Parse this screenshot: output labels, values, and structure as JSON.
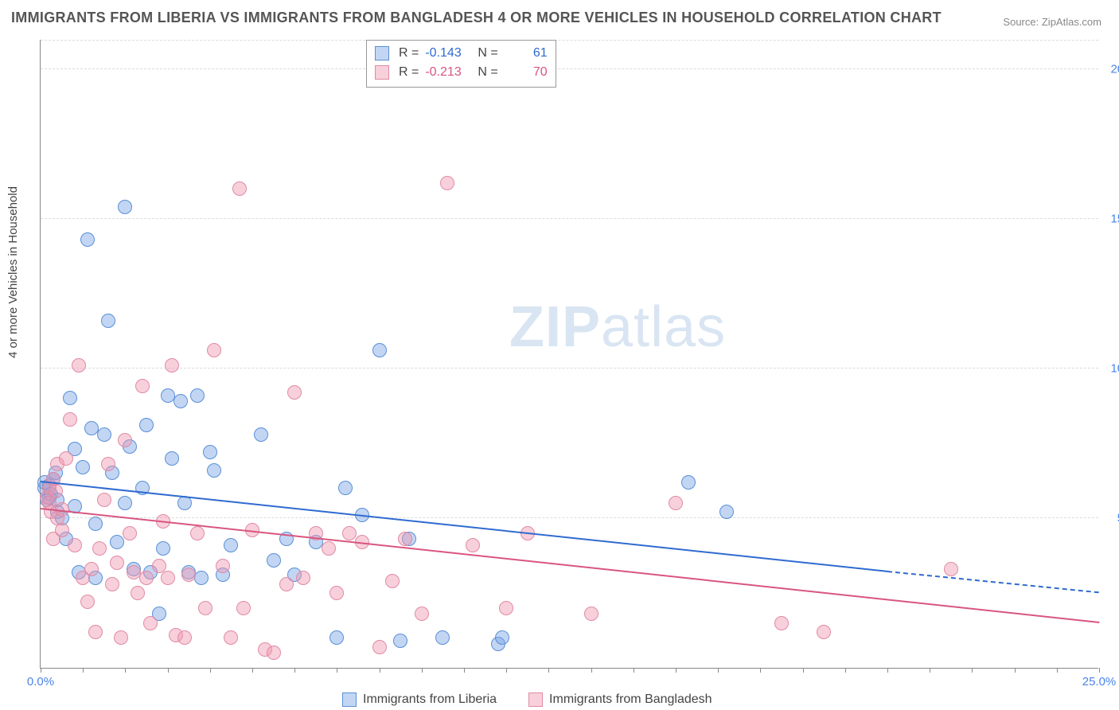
{
  "title": "IMMIGRANTS FROM LIBERIA VS IMMIGRANTS FROM BANGLADESH 4 OR MORE VEHICLES IN HOUSEHOLD CORRELATION CHART",
  "source_label": "Source:",
  "source_name": "ZipAtlas.com",
  "ylabel": "4 or more Vehicles in Household",
  "watermark_a": "ZIP",
  "watermark_b": "atlas",
  "chart": {
    "type": "scatter",
    "xlim": [
      0,
      25
    ],
    "ylim": [
      0,
      21
    ],
    "x_tick_major": [
      0,
      25
    ],
    "x_tick_minor_step": 1,
    "y_ticks": [
      5,
      10,
      15,
      20
    ],
    "y_tick_suffix": "%",
    "x_tick_suffix": "%",
    "background_color": "#ffffff",
    "grid_color": "#dcdcdc",
    "axis_color": "#888888",
    "tick_label_color": "#4a84e8",
    "marker_radius": 9,
    "marker_border_width": 1,
    "series": [
      {
        "id": "liberia",
        "label": "Immigrants from Liberia",
        "color_fill": "rgba(120,165,230,0.45)",
        "color_stroke": "#5a8fd6",
        "corr_R": "-0.143",
        "corr_N": "61",
        "trend": {
          "x0": 0,
          "y0": 6.2,
          "x1": 20,
          "y1": 3.2,
          "dash_x1": 25,
          "dash_y1": 2.5,
          "color": "#2f6bd0"
        },
        "points": [
          [
            0.1,
            6.0
          ],
          [
            0.1,
            6.2
          ],
          [
            0.15,
            5.6
          ],
          [
            0.2,
            5.7
          ],
          [
            0.2,
            6.1
          ],
          [
            0.25,
            5.8
          ],
          [
            0.3,
            6.3
          ],
          [
            0.35,
            6.5
          ],
          [
            0.4,
            5.2
          ],
          [
            0.4,
            5.6
          ],
          [
            0.5,
            5.0
          ],
          [
            0.6,
            4.3
          ],
          [
            0.7,
            9.0
          ],
          [
            0.8,
            7.3
          ],
          [
            0.8,
            5.4
          ],
          [
            0.9,
            3.2
          ],
          [
            1.0,
            6.7
          ],
          [
            1.1,
            14.3
          ],
          [
            1.2,
            8.0
          ],
          [
            1.3,
            4.8
          ],
          [
            1.3,
            3.0
          ],
          [
            1.5,
            7.8
          ],
          [
            1.6,
            11.6
          ],
          [
            1.7,
            6.5
          ],
          [
            1.8,
            4.2
          ],
          [
            2.0,
            15.4
          ],
          [
            2.1,
            7.4
          ],
          [
            2.2,
            3.3
          ],
          [
            2.4,
            6.0
          ],
          [
            2.5,
            8.1
          ],
          [
            2.6,
            3.2
          ],
          [
            2.8,
            1.8
          ],
          [
            2.9,
            4.0
          ],
          [
            3.0,
            9.1
          ],
          [
            3.1,
            7.0
          ],
          [
            3.3,
            8.9
          ],
          [
            3.5,
            3.2
          ],
          [
            3.7,
            9.1
          ],
          [
            3.8,
            3.0
          ],
          [
            4.0,
            7.2
          ],
          [
            4.1,
            6.6
          ],
          [
            4.3,
            3.1
          ],
          [
            4.5,
            4.1
          ],
          [
            5.2,
            7.8
          ],
          [
            5.5,
            3.6
          ],
          [
            5.8,
            4.3
          ],
          [
            6.0,
            3.1
          ],
          [
            6.5,
            4.2
          ],
          [
            7.0,
            1.0
          ],
          [
            7.2,
            6.0
          ],
          [
            7.6,
            5.1
          ],
          [
            8.0,
            10.6
          ],
          [
            8.5,
            0.9
          ],
          [
            8.7,
            4.3
          ],
          [
            9.5,
            1.0
          ],
          [
            10.8,
            0.8
          ],
          [
            10.9,
            1.0
          ],
          [
            15.3,
            6.2
          ],
          [
            16.2,
            5.2
          ],
          [
            2.0,
            5.5
          ],
          [
            3.4,
            5.5
          ]
        ]
      },
      {
        "id": "bangladesh",
        "label": "Immigrants from Bangladesh",
        "color_fill": "rgba(240,150,175,0.45)",
        "color_stroke": "#e08aa5",
        "corr_R": "-0.213",
        "corr_N": "70",
        "trend": {
          "x0": 0,
          "y0": 5.3,
          "x1": 25,
          "y1": 1.5,
          "color": "#d9557f"
        },
        "points": [
          [
            0.15,
            5.7
          ],
          [
            0.2,
            6.0
          ],
          [
            0.2,
            5.5
          ],
          [
            0.25,
            5.2
          ],
          [
            0.3,
            4.3
          ],
          [
            0.3,
            6.3
          ],
          [
            0.35,
            5.9
          ],
          [
            0.4,
            5.0
          ],
          [
            0.4,
            6.8
          ],
          [
            0.5,
            4.6
          ],
          [
            0.5,
            5.3
          ],
          [
            0.6,
            7.0
          ],
          [
            0.7,
            8.3
          ],
          [
            0.8,
            4.1
          ],
          [
            0.9,
            10.1
          ],
          [
            1.0,
            3.0
          ],
          [
            1.1,
            2.2
          ],
          [
            1.2,
            3.3
          ],
          [
            1.3,
            1.2
          ],
          [
            1.4,
            4.0
          ],
          [
            1.5,
            5.6
          ],
          [
            1.6,
            6.8
          ],
          [
            1.7,
            2.8
          ],
          [
            1.8,
            3.5
          ],
          [
            1.9,
            1.0
          ],
          [
            2.0,
            7.6
          ],
          [
            2.1,
            4.5
          ],
          [
            2.2,
            3.2
          ],
          [
            2.3,
            2.5
          ],
          [
            2.4,
            9.4
          ],
          [
            2.5,
            3.0
          ],
          [
            2.6,
            1.5
          ],
          [
            2.8,
            3.4
          ],
          [
            2.9,
            4.9
          ],
          [
            3.0,
            3.0
          ],
          [
            3.1,
            10.1
          ],
          [
            3.2,
            1.1
          ],
          [
            3.4,
            1.0
          ],
          [
            3.5,
            3.1
          ],
          [
            3.7,
            4.5
          ],
          [
            3.9,
            2.0
          ],
          [
            4.1,
            10.6
          ],
          [
            4.3,
            3.4
          ],
          [
            4.5,
            1.0
          ],
          [
            4.7,
            16.0
          ],
          [
            4.8,
            2.0
          ],
          [
            5.0,
            4.6
          ],
          [
            5.3,
            0.6
          ],
          [
            5.5,
            0.5
          ],
          [
            5.8,
            2.8
          ],
          [
            6.0,
            9.2
          ],
          [
            6.2,
            3.0
          ],
          [
            6.5,
            4.5
          ],
          [
            7.0,
            2.5
          ],
          [
            7.3,
            4.5
          ],
          [
            7.6,
            4.2
          ],
          [
            8.0,
            0.7
          ],
          [
            8.3,
            2.9
          ],
          [
            8.6,
            4.3
          ],
          [
            9.0,
            1.8
          ],
          [
            10.2,
            4.1
          ],
          [
            11.0,
            2.0
          ],
          [
            11.5,
            4.5
          ],
          [
            13.0,
            1.8
          ],
          [
            15.0,
            5.5
          ],
          [
            17.5,
            1.5
          ],
          [
            18.5,
            1.2
          ],
          [
            21.5,
            3.3
          ],
          [
            9.6,
            16.2
          ],
          [
            6.8,
            4.0
          ]
        ]
      }
    ]
  },
  "legend_top": {
    "R_label": "R =",
    "N_label": "N ="
  }
}
